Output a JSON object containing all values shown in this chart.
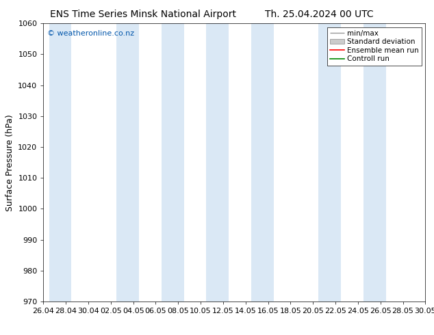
{
  "title_left": "ENS Time Series Minsk National Airport",
  "title_right": "Th. 25.04.2024 00 UTC",
  "ylabel": "Surface Pressure (hPa)",
  "xlim_start": 0,
  "xlim_end": 34,
  "ylim": [
    970,
    1060
  ],
  "yticks": [
    970,
    980,
    990,
    1000,
    1010,
    1020,
    1030,
    1040,
    1050,
    1060
  ],
  "x_tick_labels": [
    "26.04",
    "28.04",
    "30.04",
    "02.05",
    "04.05",
    "06.05",
    "08.05",
    "10.05",
    "12.05",
    "14.05",
    "16.05",
    "18.05",
    "20.05",
    "22.05",
    "24.05",
    "26.05",
    "28.05",
    "30.05"
  ],
  "x_tick_positions": [
    0,
    2,
    4,
    6,
    8,
    10,
    12,
    14,
    16,
    18,
    20,
    22,
    24,
    26,
    28,
    30,
    32,
    34
  ],
  "shaded_bands": [
    {
      "x_start": 0.5,
      "x_end": 2.5
    },
    {
      "x_start": 6.5,
      "x_end": 8.5
    },
    {
      "x_start": 10.5,
      "x_end": 12.5
    },
    {
      "x_start": 14.5,
      "x_end": 16.5
    },
    {
      "x_start": 18.5,
      "x_end": 20.5
    },
    {
      "x_start": 24.5,
      "x_end": 26.5
    },
    {
      "x_start": 28.5,
      "x_end": 30.5
    }
  ],
  "band_color": "#dae8f5",
  "watermark": "© weatheronline.co.nz",
  "watermark_color": "#0055aa",
  "bg_color": "#ffffff",
  "plot_bg_color": "#ffffff",
  "legend_labels": [
    "min/max",
    "Standard deviation",
    "Ensemble mean run",
    "Controll run"
  ],
  "legend_colors": [
    "#999999",
    "#cccccc",
    "#ff0000",
    "#008800"
  ],
  "title_fontsize": 10,
  "ylabel_fontsize": 9,
  "tick_fontsize": 8,
  "legend_fontsize": 7.5,
  "watermark_fontsize": 8
}
